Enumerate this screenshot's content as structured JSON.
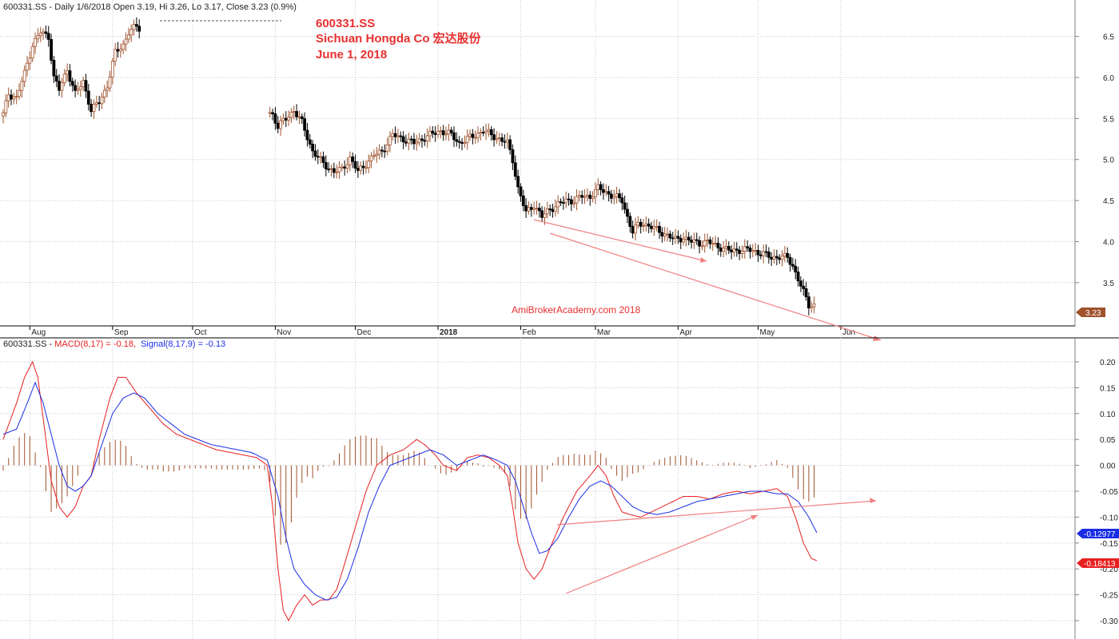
{
  "chart_data": [
    {
      "type": "candlestick",
      "header": "600331.SS - Daily 1/6/2018 Open 3.19, Hi 3.26, Lo 3.17, Close 3.23 (0.9%)",
      "title_lines": [
        "600331.SS",
        "Sichuan Hongda Co 宏达股份",
        "June 1, 2018"
      ],
      "watermark": "AmiBrokerAcademy.com  2018",
      "last_price_label": "3.23",
      "ylim": [
        3.05,
        6.75
      ],
      "yticks": [
        "3.5",
        "4.0",
        "4.5",
        "5.0",
        "5.5",
        "6.0",
        "6.5"
      ],
      "x_range_days": [
        0,
        326
      ],
      "month_labels": [
        {
          "label": "Aug",
          "day": 10
        },
        {
          "label": "Sep",
          "day": 41
        },
        {
          "label": "Oct",
          "day": 71
        },
        {
          "label": "Nov",
          "day": 102
        },
        {
          "label": "Dec",
          "day": 132
        },
        {
          "label": "2018",
          "day": 163
        },
        {
          "label": "Feb",
          "day": 194
        },
        {
          "label": "Mar",
          "day": 222
        },
        {
          "label": "Apr",
          "day": 253
        },
        {
          "label": "May",
          "day": 283
        },
        {
          "label": "Jun",
          "day": 314
        }
      ],
      "close_anchors": [
        [
          0,
          5.55
        ],
        [
          2,
          5.8
        ],
        [
          5,
          5.75
        ],
        [
          8,
          6.05
        ],
        [
          11,
          6.4
        ],
        [
          14,
          6.55
        ],
        [
          17,
          6.5
        ],
        [
          19,
          6.0
        ],
        [
          21,
          5.85
        ],
        [
          24,
          6.1
        ],
        [
          27,
          5.8
        ],
        [
          30,
          5.95
        ],
        [
          33,
          5.6
        ],
        [
          36,
          5.7
        ],
        [
          39,
          5.9
        ],
        [
          42,
          6.3
        ],
        [
          45,
          6.4
        ],
        [
          47,
          6.55
        ],
        [
          50,
          6.62
        ],
        [
          101,
          5.55
        ],
        [
          103,
          5.4
        ],
        [
          106,
          5.5
        ],
        [
          109,
          5.6
        ],
        [
          112,
          5.45
        ],
        [
          116,
          5.1
        ],
        [
          120,
          4.95
        ],
        [
          124,
          4.85
        ],
        [
          127,
          4.88
        ],
        [
          130,
          5.02
        ],
        [
          133,
          4.85
        ],
        [
          136,
          4.95
        ],
        [
          139,
          5.05
        ],
        [
          142,
          5.1
        ],
        [
          146,
          5.3
        ],
        [
          150,
          5.25
        ],
        [
          154,
          5.2
        ],
        [
          157,
          5.25
        ],
        [
          160,
          5.3
        ],
        [
          164,
          5.35
        ],
        [
          168,
          5.3
        ],
        [
          171,
          5.2
        ],
        [
          174,
          5.25
        ],
        [
          177,
          5.3
        ],
        [
          180,
          5.35
        ],
        [
          183,
          5.3
        ],
        [
          186,
          5.25
        ],
        [
          189,
          5.2
        ],
        [
          191,
          5.0
        ],
        [
          193,
          4.65
        ],
        [
          196,
          4.35
        ],
        [
          199,
          4.45
        ],
        [
          202,
          4.3
        ],
        [
          205,
          4.4
        ],
        [
          208,
          4.45
        ],
        [
          211,
          4.5
        ],
        [
          214,
          4.5
        ],
        [
          217,
          4.55
        ],
        [
          220,
          4.55
        ],
        [
          223,
          4.65
        ],
        [
          226,
          4.6
        ],
        [
          229,
          4.55
        ],
        [
          232,
          4.5
        ],
        [
          234,
          4.3
        ],
        [
          236,
          4.12
        ],
        [
          238,
          4.2
        ],
        [
          240,
          4.22
        ],
        [
          243,
          4.18
        ],
        [
          246,
          4.12
        ],
        [
          249,
          4.08
        ],
        [
          252,
          4.02
        ],
        [
          255,
          4.05
        ],
        [
          258,
          4.0
        ],
        [
          261,
          3.98
        ],
        [
          264,
          4.0
        ],
        [
          267,
          3.95
        ],
        [
          270,
          3.92
        ],
        [
          273,
          3.88
        ],
        [
          276,
          3.9
        ],
        [
          279,
          3.9
        ],
        [
          282,
          3.88
        ],
        [
          285,
          3.85
        ],
        [
          288,
          3.8
        ],
        [
          291,
          3.82
        ],
        [
          294,
          3.8
        ],
        [
          296,
          3.7
        ],
        [
          298,
          3.55
        ],
        [
          300,
          3.38
        ],
        [
          302,
          3.22
        ],
        [
          304,
          3.23
        ]
      ],
      "gaps": [
        [
          51,
          100
        ]
      ],
      "annotations": [
        "trendline-1",
        "trendline-2"
      ]
    },
    {
      "type": "line+bar",
      "header_prefix": "600331.SS - ",
      "macd_label": "MACD(8,17) = -0.18,",
      "signal_label": "Signal(8,17,9) = -0.13",
      "ylim": [
        -0.32,
        0.22
      ],
      "yticks": [
        "0.20",
        "0.15",
        "0.10",
        "0.05",
        "0.00",
        "-0.05",
        "-0.10",
        "-0.15",
        "-0.20",
        "-0.25",
        "-0.30"
      ],
      "macd_value_label": "-0.18413",
      "signal_value_label": "-0.12977",
      "series": [
        {
          "name": "MACD(8,17)",
          "color": "#e82020",
          "anchors": [
            [
              0,
              0.05
            ],
            [
              5,
              0.12
            ],
            [
              8,
              0.17
            ],
            [
              11,
              0.2
            ],
            [
              13,
              0.17
            ],
            [
              16,
              0.05
            ],
            [
              18,
              -0.03
            ],
            [
              21,
              -0.08
            ],
            [
              24,
              -0.1
            ],
            [
              27,
              -0.08
            ],
            [
              30,
              -0.04
            ],
            [
              33,
              -0.02
            ],
            [
              36,
              0.05
            ],
            [
              40,
              0.13
            ],
            [
              43,
              0.17
            ],
            [
              46,
              0.17
            ],
            [
              50,
              0.14
            ],
            [
              55,
              0.11
            ],
            [
              60,
              0.08
            ],
            [
              65,
              0.06
            ],
            [
              70,
              0.05
            ],
            [
              75,
              0.04
            ],
            [
              80,
              0.03
            ],
            [
              85,
              0.025
            ],
            [
              90,
              0.02
            ],
            [
              95,
              0.015
            ],
            [
              99,
              0.0
            ],
            [
              101,
              -0.08
            ],
            [
              103,
              -0.2
            ],
            [
              105,
              -0.28
            ],
            [
              107,
              -0.3
            ],
            [
              110,
              -0.27
            ],
            [
              113,
              -0.25
            ],
            [
              116,
              -0.27
            ],
            [
              119,
              -0.26
            ],
            [
              122,
              -0.26
            ],
            [
              125,
              -0.24
            ],
            [
              128,
              -0.19
            ],
            [
              132,
              -0.12
            ],
            [
              136,
              -0.05
            ],
            [
              140,
              0.0
            ],
            [
              145,
              0.02
            ],
            [
              150,
              0.03
            ],
            [
              155,
              0.05
            ],
            [
              158,
              0.04
            ],
            [
              162,
              0.02
            ],
            [
              165,
              0.0
            ],
            [
              170,
              -0.01
            ],
            [
              174,
              0.015
            ],
            [
              178,
              0.02
            ],
            [
              182,
              0.015
            ],
            [
              186,
              0.0
            ],
            [
              189,
              -0.02
            ],
            [
              191,
              -0.08
            ],
            [
              193,
              -0.15
            ],
            [
              196,
              -0.2
            ],
            [
              199,
              -0.22
            ],
            [
              202,
              -0.2
            ],
            [
              205,
              -0.16
            ],
            [
              210,
              -0.1
            ],
            [
              215,
              -0.05
            ],
            [
              220,
              -0.02
            ],
            [
              223,
              0.0
            ],
            [
              226,
              -0.02
            ],
            [
              229,
              -0.06
            ],
            [
              232,
              -0.09
            ],
            [
              235,
              -0.095
            ],
            [
              239,
              -0.1
            ],
            [
              243,
              -0.09
            ],
            [
              247,
              -0.08
            ],
            [
              251,
              -0.07
            ],
            [
              255,
              -0.06
            ],
            [
              260,
              -0.06
            ],
            [
              265,
              -0.065
            ],
            [
              270,
              -0.055
            ],
            [
              275,
              -0.05
            ],
            [
              280,
              -0.055
            ],
            [
              285,
              -0.05
            ],
            [
              290,
              -0.045
            ],
            [
              294,
              -0.06
            ],
            [
              297,
              -0.1
            ],
            [
              300,
              -0.15
            ],
            [
              303,
              -0.18
            ],
            [
              305,
              -0.184
            ]
          ]
        },
        {
          "name": "Signal(8,17,9)",
          "color": "#1a2ee6",
          "anchors": [
            [
              0,
              0.06
            ],
            [
              5,
              0.07
            ],
            [
              9,
              0.12
            ],
            [
              12,
              0.16
            ],
            [
              15,
              0.12
            ],
            [
              18,
              0.06
            ],
            [
              21,
              0.0
            ],
            [
              24,
              -0.04
            ],
            [
              27,
              -0.05
            ],
            [
              30,
              -0.04
            ],
            [
              33,
              -0.02
            ],
            [
              37,
              0.04
            ],
            [
              41,
              0.1
            ],
            [
              45,
              0.13
            ],
            [
              49,
              0.14
            ],
            [
              53,
              0.13
            ],
            [
              58,
              0.1
            ],
            [
              63,
              0.08
            ],
            [
              68,
              0.06
            ],
            [
              73,
              0.05
            ],
            [
              78,
              0.04
            ],
            [
              83,
              0.035
            ],
            [
              88,
              0.03
            ],
            [
              93,
              0.025
            ],
            [
              99,
              0.01
            ],
            [
              103,
              -0.06
            ],
            [
              106,
              -0.14
            ],
            [
              109,
              -0.2
            ],
            [
              113,
              -0.23
            ],
            [
              117,
              -0.25
            ],
            [
              121,
              -0.26
            ],
            [
              125,
              -0.255
            ],
            [
              129,
              -0.22
            ],
            [
              133,
              -0.16
            ],
            [
              137,
              -0.09
            ],
            [
              141,
              -0.04
            ],
            [
              145,
              0.0
            ],
            [
              150,
              0.01
            ],
            [
              155,
              0.02
            ],
            [
              160,
              0.03
            ],
            [
              165,
              0.02
            ],
            [
              170,
              0.0
            ],
            [
              175,
              0.01
            ],
            [
              180,
              0.02
            ],
            [
              185,
              0.01
            ],
            [
              189,
              0.0
            ],
            [
              192,
              -0.03
            ],
            [
              195,
              -0.08
            ],
            [
              198,
              -0.13
            ],
            [
              201,
              -0.17
            ],
            [
              204,
              -0.165
            ],
            [
              208,
              -0.14
            ],
            [
              212,
              -0.1
            ],
            [
              216,
              -0.065
            ],
            [
              220,
              -0.04
            ],
            [
              224,
              -0.03
            ],
            [
              228,
              -0.04
            ],
            [
              232,
              -0.06
            ],
            [
              236,
              -0.08
            ],
            [
              240,
              -0.09
            ],
            [
              245,
              -0.095
            ],
            [
              250,
              -0.09
            ],
            [
              255,
              -0.08
            ],
            [
              260,
              -0.07
            ],
            [
              265,
              -0.065
            ],
            [
              270,
              -0.06
            ],
            [
              275,
              -0.055
            ],
            [
              280,
              -0.05
            ],
            [
              285,
              -0.05
            ],
            [
              290,
              -0.055
            ],
            [
              294,
              -0.055
            ],
            [
              298,
              -0.07
            ],
            [
              302,
              -0.1
            ],
            [
              305,
              -0.13
            ]
          ]
        }
      ],
      "histogram_color": "#a0522d",
      "annotations": [
        "trendline-1",
        "trendline-2"
      ]
    }
  ]
}
